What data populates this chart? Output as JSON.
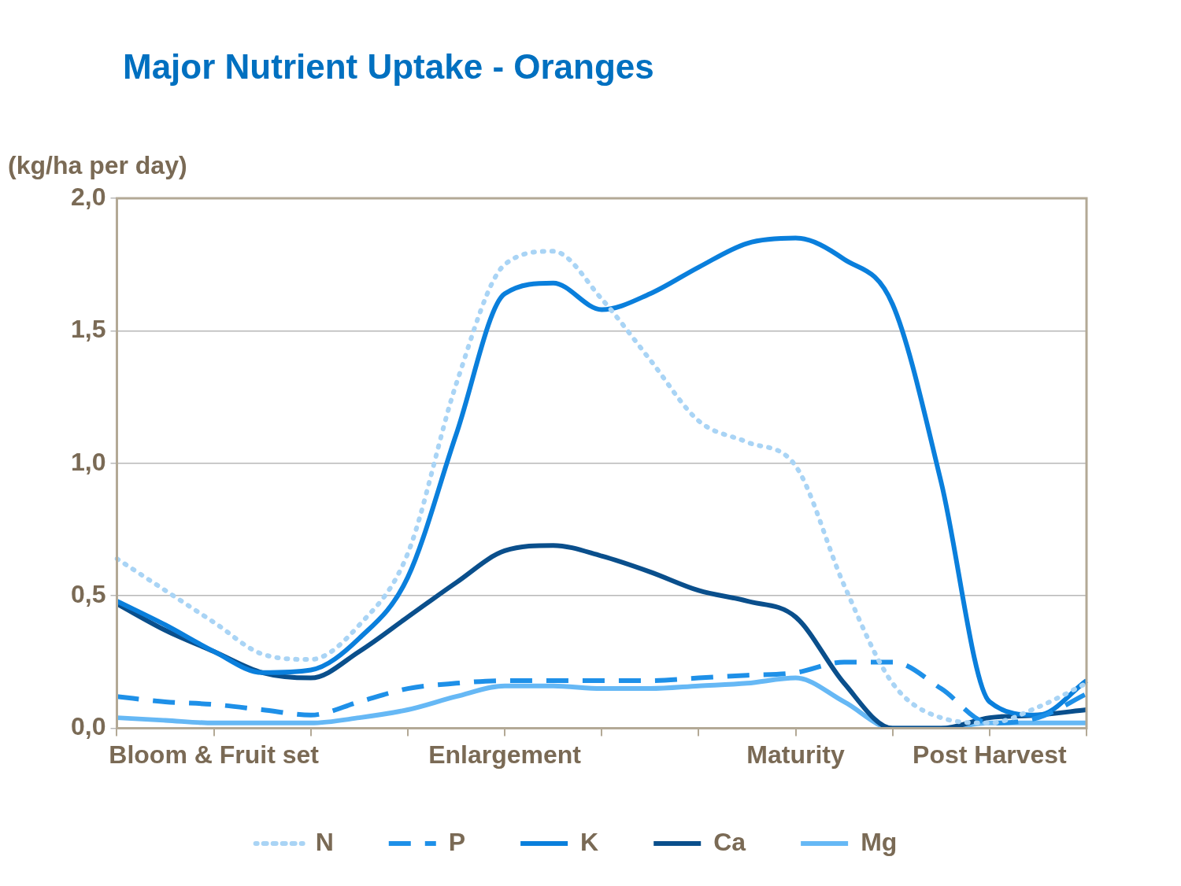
{
  "chart_data": {
    "type": "line",
    "title": "Major Nutrient Uptake - Oranges",
    "ylabel": "(kg/ha per day)",
    "categories": [
      null,
      null,
      "Bloom & Fruit set",
      null,
      null,
      null,
      null,
      null,
      "Enlargement",
      null,
      null,
      null,
      null,
      null,
      "Maturity",
      null,
      null,
      null,
      "Post Harvest",
      null,
      null
    ],
    "series": [
      {
        "name": "N",
        "color": "#a9d4f5",
        "line_style": "dotted",
        "values": [
          0.64,
          0.52,
          0.4,
          0.28,
          0.26,
          0.39,
          0.66,
          1.3,
          1.75,
          1.8,
          1.62,
          1.39,
          1.16,
          1.08,
          0.99,
          0.54,
          0.17,
          0.04,
          0.02,
          0.08,
          0.17
        ]
      },
      {
        "name": "P",
        "color": "#1e90e8",
        "line_style": "dashed",
        "values": [
          0.12,
          0.1,
          0.09,
          0.07,
          0.05,
          0.1,
          0.15,
          0.17,
          0.18,
          0.18,
          0.18,
          0.18,
          0.19,
          0.2,
          0.21,
          0.25,
          0.25,
          0.15,
          0.02,
          0.04,
          0.13
        ]
      },
      {
        "name": "K",
        "color": "#0a7fdc",
        "line_style": "solid",
        "values": [
          0.48,
          0.39,
          0.29,
          0.21,
          0.22,
          0.34,
          0.57,
          1.11,
          1.64,
          1.68,
          1.58,
          1.64,
          1.74,
          1.83,
          1.85,
          1.77,
          1.6,
          0.93,
          0.1,
          0.05,
          0.18
        ]
      },
      {
        "name": "Ca",
        "color": "#0a4f8c",
        "line_style": "solid",
        "values": [
          0.47,
          0.37,
          0.29,
          0.21,
          0.19,
          0.29,
          0.42,
          0.55,
          0.67,
          0.69,
          0.65,
          0.59,
          0.52,
          0.48,
          0.42,
          0.17,
          0,
          0,
          0.04,
          0.05,
          0.07
        ]
      },
      {
        "name": "Mg",
        "color": "#66b8f5",
        "line_style": "solid",
        "values": [
          0.04,
          0.03,
          0.02,
          0.02,
          0.02,
          0.04,
          0.07,
          0.12,
          0.16,
          0.16,
          0.15,
          0.15,
          0.16,
          0.17,
          0.19,
          0.1,
          0,
          0,
          0.02,
          0.02,
          0.02
        ]
      }
    ],
    "ylim": [
      0,
      2
    ],
    "yticks": [
      {
        "value": 0,
        "label": "0,0"
      },
      {
        "value": 0.5,
        "label": "0,5"
      },
      {
        "value": 1,
        "label": "1,0"
      },
      {
        "value": 1.5,
        "label": "1,5"
      },
      {
        "value": 2,
        "label": "2,0"
      }
    ],
    "grid": "y",
    "legend": "bottom",
    "marker": "none"
  }
}
